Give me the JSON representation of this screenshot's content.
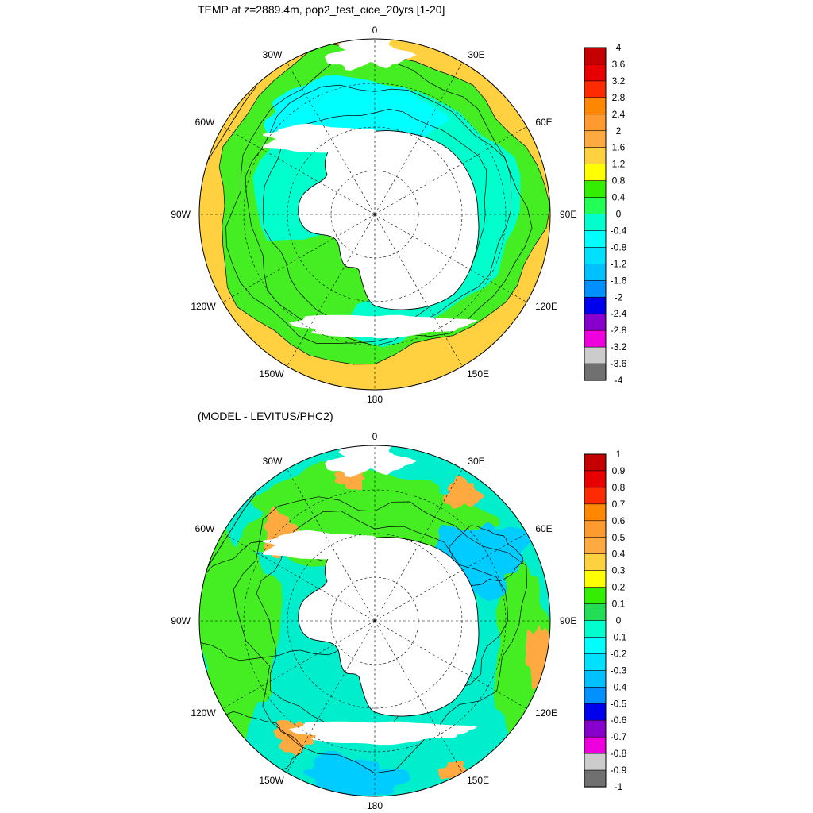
{
  "chart_data": [
    {
      "type": "heatmap",
      "projection": "polar-stereographic-south",
      "title": "TEMP at z=2889.4m, pop2_test_cice_20yrs [1-20]",
      "longitude_labels": [
        "0",
        "30E",
        "60E",
        "90E",
        "120E",
        "150E",
        "180",
        "150W",
        "120W",
        "90W",
        "60W",
        "30W"
      ],
      "colorbar": {
        "tick_labels": [
          "4",
          "3.6",
          "3.2",
          "2.8",
          "2.4",
          "2",
          "1.6",
          "1.2",
          "0.8",
          "0.4",
          "0",
          "-0.4",
          "-0.8",
          "-1.2",
          "-1.6",
          "-2",
          "-2.4",
          "-2.8",
          "-3.2",
          "-3.6",
          "-4"
        ],
        "colors": [
          "#c40000",
          "#e80000",
          "#ff2a00",
          "#ff8800",
          "#ff9a30",
          "#ffaa40",
          "#ffd040",
          "#ffff00",
          "#33ee00",
          "#22ff55",
          "#00ffcc",
          "#00ffff",
          "#00e0ff",
          "#00c0ff",
          "#0090ff",
          "#0000ee",
          "#8800cc",
          "#ee00dd",
          "#cccccc",
          "#707070"
        ]
      },
      "regions": [
        {
          "name": "outer",
          "level": 1.4,
          "color": "#ffd040"
        },
        {
          "name": "mid",
          "level": 0.6,
          "color": "#44ee22"
        },
        {
          "name": "inner",
          "level": -0.2,
          "color": "#00ffcc"
        },
        {
          "name": "weddell",
          "level": -0.6,
          "color": "#00ffff"
        }
      ]
    },
    {
      "type": "heatmap",
      "projection": "polar-stereographic-south",
      "title": "(MODEL - LEVITUS/PHC2)",
      "longitude_labels": [
        "0",
        "30E",
        "60E",
        "90E",
        "120E",
        "150E",
        "180",
        "150W",
        "120W",
        "90W",
        "60W",
        "30W"
      ],
      "colorbar": {
        "tick_labels": [
          "1",
          "0.9",
          "0.8",
          "0.7",
          "0.6",
          "0.5",
          "0.4",
          "0.3",
          "0.2",
          "0.1",
          "0",
          "-0.1",
          "-0.2",
          "-0.3",
          "-0.4",
          "-0.5",
          "-0.6",
          "-0.7",
          "-0.8",
          "-0.9",
          "-1"
        ],
        "colors": [
          "#c40000",
          "#e80000",
          "#ff2a00",
          "#ff8800",
          "#ff9a30",
          "#ffaa40",
          "#ffd040",
          "#ffff00",
          "#33ee00",
          "#22dd55",
          "#00ffcc",
          "#00ffff",
          "#00e0ff",
          "#00c0ff",
          "#0090ff",
          "#0000ee",
          "#8800cc",
          "#ee00dd",
          "#cccccc",
          "#707070"
        ]
      },
      "regions": [
        {
          "name": "background",
          "level": -0.05,
          "color": "#00eecc"
        },
        {
          "name": "atlantic-band",
          "level": 0.05,
          "color": "#44ee22"
        },
        {
          "name": "pacific-band",
          "level": 0.05,
          "color": "#44ee22"
        },
        {
          "name": "west-pacific-band",
          "level": 0.05,
          "color": "#44ee22"
        },
        {
          "name": "indian-low",
          "level": -0.25,
          "color": "#00ccff"
        },
        {
          "name": "ross-low",
          "level": -0.25,
          "color": "#00ccff"
        },
        {
          "name": "warm-patches",
          "level": 0.45,
          "color": "#ffaa40"
        }
      ]
    }
  ]
}
